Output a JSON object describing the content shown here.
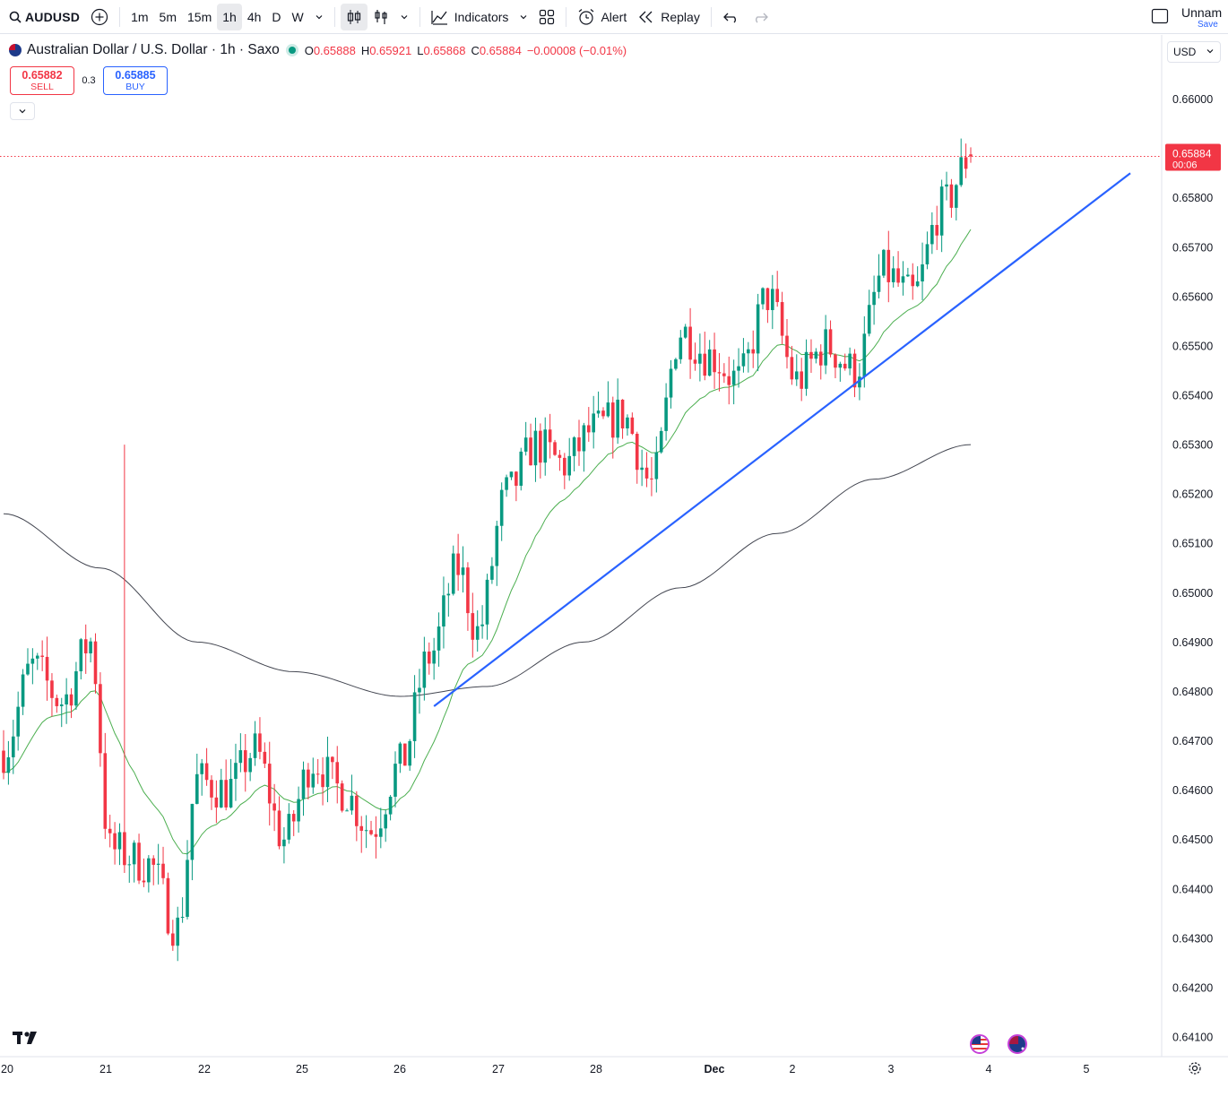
{
  "toolbar": {
    "symbol": "AUDUSD",
    "intervals": [
      "1m",
      "5m",
      "15m",
      "1h",
      "4h",
      "D",
      "W"
    ],
    "active_interval": "1h",
    "indicators_label": "Indicators",
    "alert_label": "Alert",
    "replay_label": "Replay",
    "layout_name": "Unnam",
    "save_label": "Save"
  },
  "legend": {
    "title": "Australian Dollar / U.S. Dollar · 1h · Saxo",
    "o_label": "O",
    "o": "0.65888",
    "h_label": "H",
    "h": "0.65921",
    "l_label": "L",
    "l": "0.65868",
    "c_label": "C",
    "c": "0.65884",
    "change": "−0.00008 (−0.01%)"
  },
  "trade": {
    "sell_price": "0.65882",
    "sell_label": "SELL",
    "spread": "0.3",
    "buy_price": "0.65885",
    "buy_label": "BUY"
  },
  "currency": "USD",
  "price_tag": {
    "price": "0.65884",
    "countdown": "00:06"
  },
  "colors": {
    "up": "#089981",
    "down": "#f23645",
    "trendline": "#2962ff",
    "ma_fast": "#4caf50",
    "ma_slow": "#434651"
  },
  "chart_data": {
    "type": "candlestick",
    "y_axis": {
      "ticks": [
        0.641,
        0.642,
        0.643,
        0.644,
        0.645,
        0.646,
        0.647,
        0.648,
        0.649,
        0.65,
        0.651,
        0.652,
        0.653,
        0.654,
        0.655,
        0.656,
        0.657,
        0.658,
        0.659,
        0.66
      ],
      "tick_labels": [
        "0.64100",
        "0.64200",
        "0.64300",
        "0.64400",
        "0.64500",
        "0.64600",
        "0.64700",
        "0.64800",
        "0.64900",
        "0.65000",
        "0.65100",
        "0.65200",
        "0.65300",
        "0.65400",
        "0.65500",
        "0.65600",
        "0.65700",
        "0.65800",
        "0.65900",
        "0.66000"
      ],
      "range": [
        0.6406,
        0.6613
      ]
    },
    "x_axis": {
      "labels": [
        "20",
        "21",
        "22",
        "25",
        "26",
        "27",
        "28",
        "Dec",
        "2",
        "3",
        "4",
        "5"
      ],
      "bar_index_range": [
        0,
        200
      ]
    },
    "current_price": 0.65884,
    "anchors": [
      {
        "bar": 0,
        "price": 0.6468
      },
      {
        "bar": 6,
        "price": 0.6485
      },
      {
        "bar": 12,
        "price": 0.6478
      },
      {
        "bar": 18,
        "price": 0.649
      },
      {
        "bar": 22,
        "price": 0.6448
      },
      {
        "bar": 30,
        "price": 0.6445
      },
      {
        "bar": 36,
        "price": 0.6432
      },
      {
        "bar": 40,
        "price": 0.6462
      },
      {
        "bar": 46,
        "price": 0.646
      },
      {
        "bar": 52,
        "price": 0.6468
      },
      {
        "bar": 58,
        "price": 0.645
      },
      {
        "bar": 64,
        "price": 0.6466
      },
      {
        "bar": 70,
        "price": 0.646
      },
      {
        "bar": 76,
        "price": 0.6452
      },
      {
        "bar": 82,
        "price": 0.6465
      },
      {
        "bar": 88,
        "price": 0.6487
      },
      {
        "bar": 94,
        "price": 0.6505
      },
      {
        "bar": 98,
        "price": 0.6492
      },
      {
        "bar": 104,
        "price": 0.652
      },
      {
        "bar": 110,
        "price": 0.653
      },
      {
        "bar": 116,
        "price": 0.6526
      },
      {
        "bar": 122,
        "price": 0.6533
      },
      {
        "bar": 128,
        "price": 0.6536
      },
      {
        "bar": 134,
        "price": 0.6522
      },
      {
        "bar": 140,
        "price": 0.6553
      },
      {
        "bar": 146,
        "price": 0.6548
      },
      {
        "bar": 152,
        "price": 0.6543
      },
      {
        "bar": 158,
        "price": 0.656
      },
      {
        "bar": 164,
        "price": 0.6543
      },
      {
        "bar": 170,
        "price": 0.655
      },
      {
        "bar": 176,
        "price": 0.6545
      },
      {
        "bar": 182,
        "price": 0.6565
      },
      {
        "bar": 188,
        "price": 0.656
      },
      {
        "bar": 194,
        "price": 0.6578
      },
      {
        "bar": 200,
        "price": 0.65884
      }
    ],
    "ma_slow": [
      {
        "bar": 0,
        "price": 0.6516
      },
      {
        "bar": 20,
        "price": 0.6505
      },
      {
        "bar": 40,
        "price": 0.649
      },
      {
        "bar": 60,
        "price": 0.6484
      },
      {
        "bar": 82,
        "price": 0.6479
      },
      {
        "bar": 100,
        "price": 0.6481
      },
      {
        "bar": 120,
        "price": 0.649
      },
      {
        "bar": 140,
        "price": 0.6501
      },
      {
        "bar": 160,
        "price": 0.6512
      },
      {
        "bar": 180,
        "price": 0.6523
      },
      {
        "bar": 200,
        "price": 0.653
      }
    ],
    "trendline": [
      {
        "bar": 89,
        "price": 0.6477
      },
      {
        "bar": 233,
        "price": 0.6585
      }
    ]
  }
}
